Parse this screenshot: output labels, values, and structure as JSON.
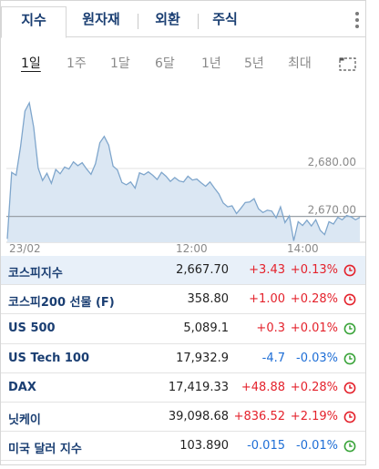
{
  "tabs": [
    {
      "label": "지수",
      "active": true
    },
    {
      "label": "원자재",
      "active": false
    },
    {
      "label": "외환",
      "active": false
    },
    {
      "label": "주식",
      "active": false
    }
  ],
  "periods": [
    {
      "label": "1일",
      "active": true
    },
    {
      "label": "1주",
      "active": false
    },
    {
      "label": "1달",
      "active": false
    },
    {
      "label": "6달",
      "active": false
    },
    {
      "label": "1년",
      "active": false
    },
    {
      "label": "5년",
      "active": false
    },
    {
      "label": "최대",
      "active": false
    }
  ],
  "chart_data": {
    "type": "area",
    "x_tick_labels": [
      "23/02",
      "12:00",
      "14:00"
    ],
    "y_tick_labels": [
      "2,680.00",
      "2,670.00"
    ],
    "y_ticks": [
      2680,
      2670
    ],
    "ylim": [
      2664.6,
      2697.7
    ],
    "reference_line": 2670,
    "grid": true,
    "series": [
      {
        "color": "#7fa6cc",
        "fill": "#dbe7f3",
        "values": [
          2665.3,
          2679.2,
          2678.6,
          2684.5,
          2692.0,
          2693.7,
          2688.6,
          2680.1,
          2677.5,
          2679.0,
          2676.9,
          2679.8,
          2678.9,
          2680.3,
          2679.9,
          2681.4,
          2680.6,
          2681.2,
          2679.9,
          2678.8,
          2681.0,
          2685.4,
          2686.7,
          2684.9,
          2680.5,
          2679.7,
          2677.1,
          2676.6,
          2677.2,
          2675.9,
          2679.1,
          2678.7,
          2679.3,
          2678.6,
          2677.7,
          2679.2,
          2678.4,
          2677.3,
          2678.1,
          2677.4,
          2677.2,
          2678.4,
          2677.6,
          2677.8,
          2677.0,
          2676.3,
          2677.2,
          2675.9,
          2674.7,
          2672.8,
          2672.0,
          2672.2,
          2670.6,
          2671.7,
          2672.9,
          2673.0,
          2673.7,
          2671.6,
          2670.8,
          2671.3,
          2671.1,
          2669.7,
          2672.0,
          2668.7,
          2670.1,
          2664.9,
          2668.9,
          2668.1,
          2669.2,
          2668.0,
          2669.3,
          2667.1,
          2666.2,
          2668.9,
          2668.4,
          2669.8,
          2669.3,
          2670.2,
          2669.9,
          2669.3,
          2669.8
        ]
      }
    ]
  },
  "quotes": [
    {
      "name": "코스피지수",
      "price": "2,667.70",
      "change": "+3.43",
      "pct": "+0.13%",
      "dir": "up",
      "status": "closed",
      "highlight": true
    },
    {
      "name": "코스피200 선물 (F)",
      "price": "358.80",
      "change": "+1.00",
      "pct": "+0.28%",
      "dir": "up",
      "status": "closed",
      "highlight": false
    },
    {
      "name": "US 500",
      "price": "5,089.1",
      "change": "+0.3",
      "pct": "+0.01%",
      "dir": "up",
      "status": "open",
      "highlight": false
    },
    {
      "name": "US Tech 100",
      "price": "17,932.9",
      "change": "-4.7",
      "pct": "-0.03%",
      "dir": "down",
      "status": "open",
      "highlight": false
    },
    {
      "name": "DAX",
      "price": "17,419.33",
      "change": "+48.88",
      "pct": "+0.28%",
      "dir": "up",
      "status": "closed",
      "highlight": false
    },
    {
      "name": "닛케이",
      "price": "39,098.68",
      "change": "+836.52",
      "pct": "+2.19%",
      "dir": "up",
      "status": "closed",
      "highlight": false
    },
    {
      "name": "미국 달러 지수",
      "price": "103.890",
      "change": "-0.015",
      "pct": "-0.01%",
      "dir": "down",
      "status": "open",
      "highlight": false
    }
  ],
  "colors": {
    "up": "#e4222c",
    "down": "#1e6ed6",
    "status_open": "#3aa43a",
    "status_closed": "#e4222c",
    "accent": "#1a3e72"
  }
}
